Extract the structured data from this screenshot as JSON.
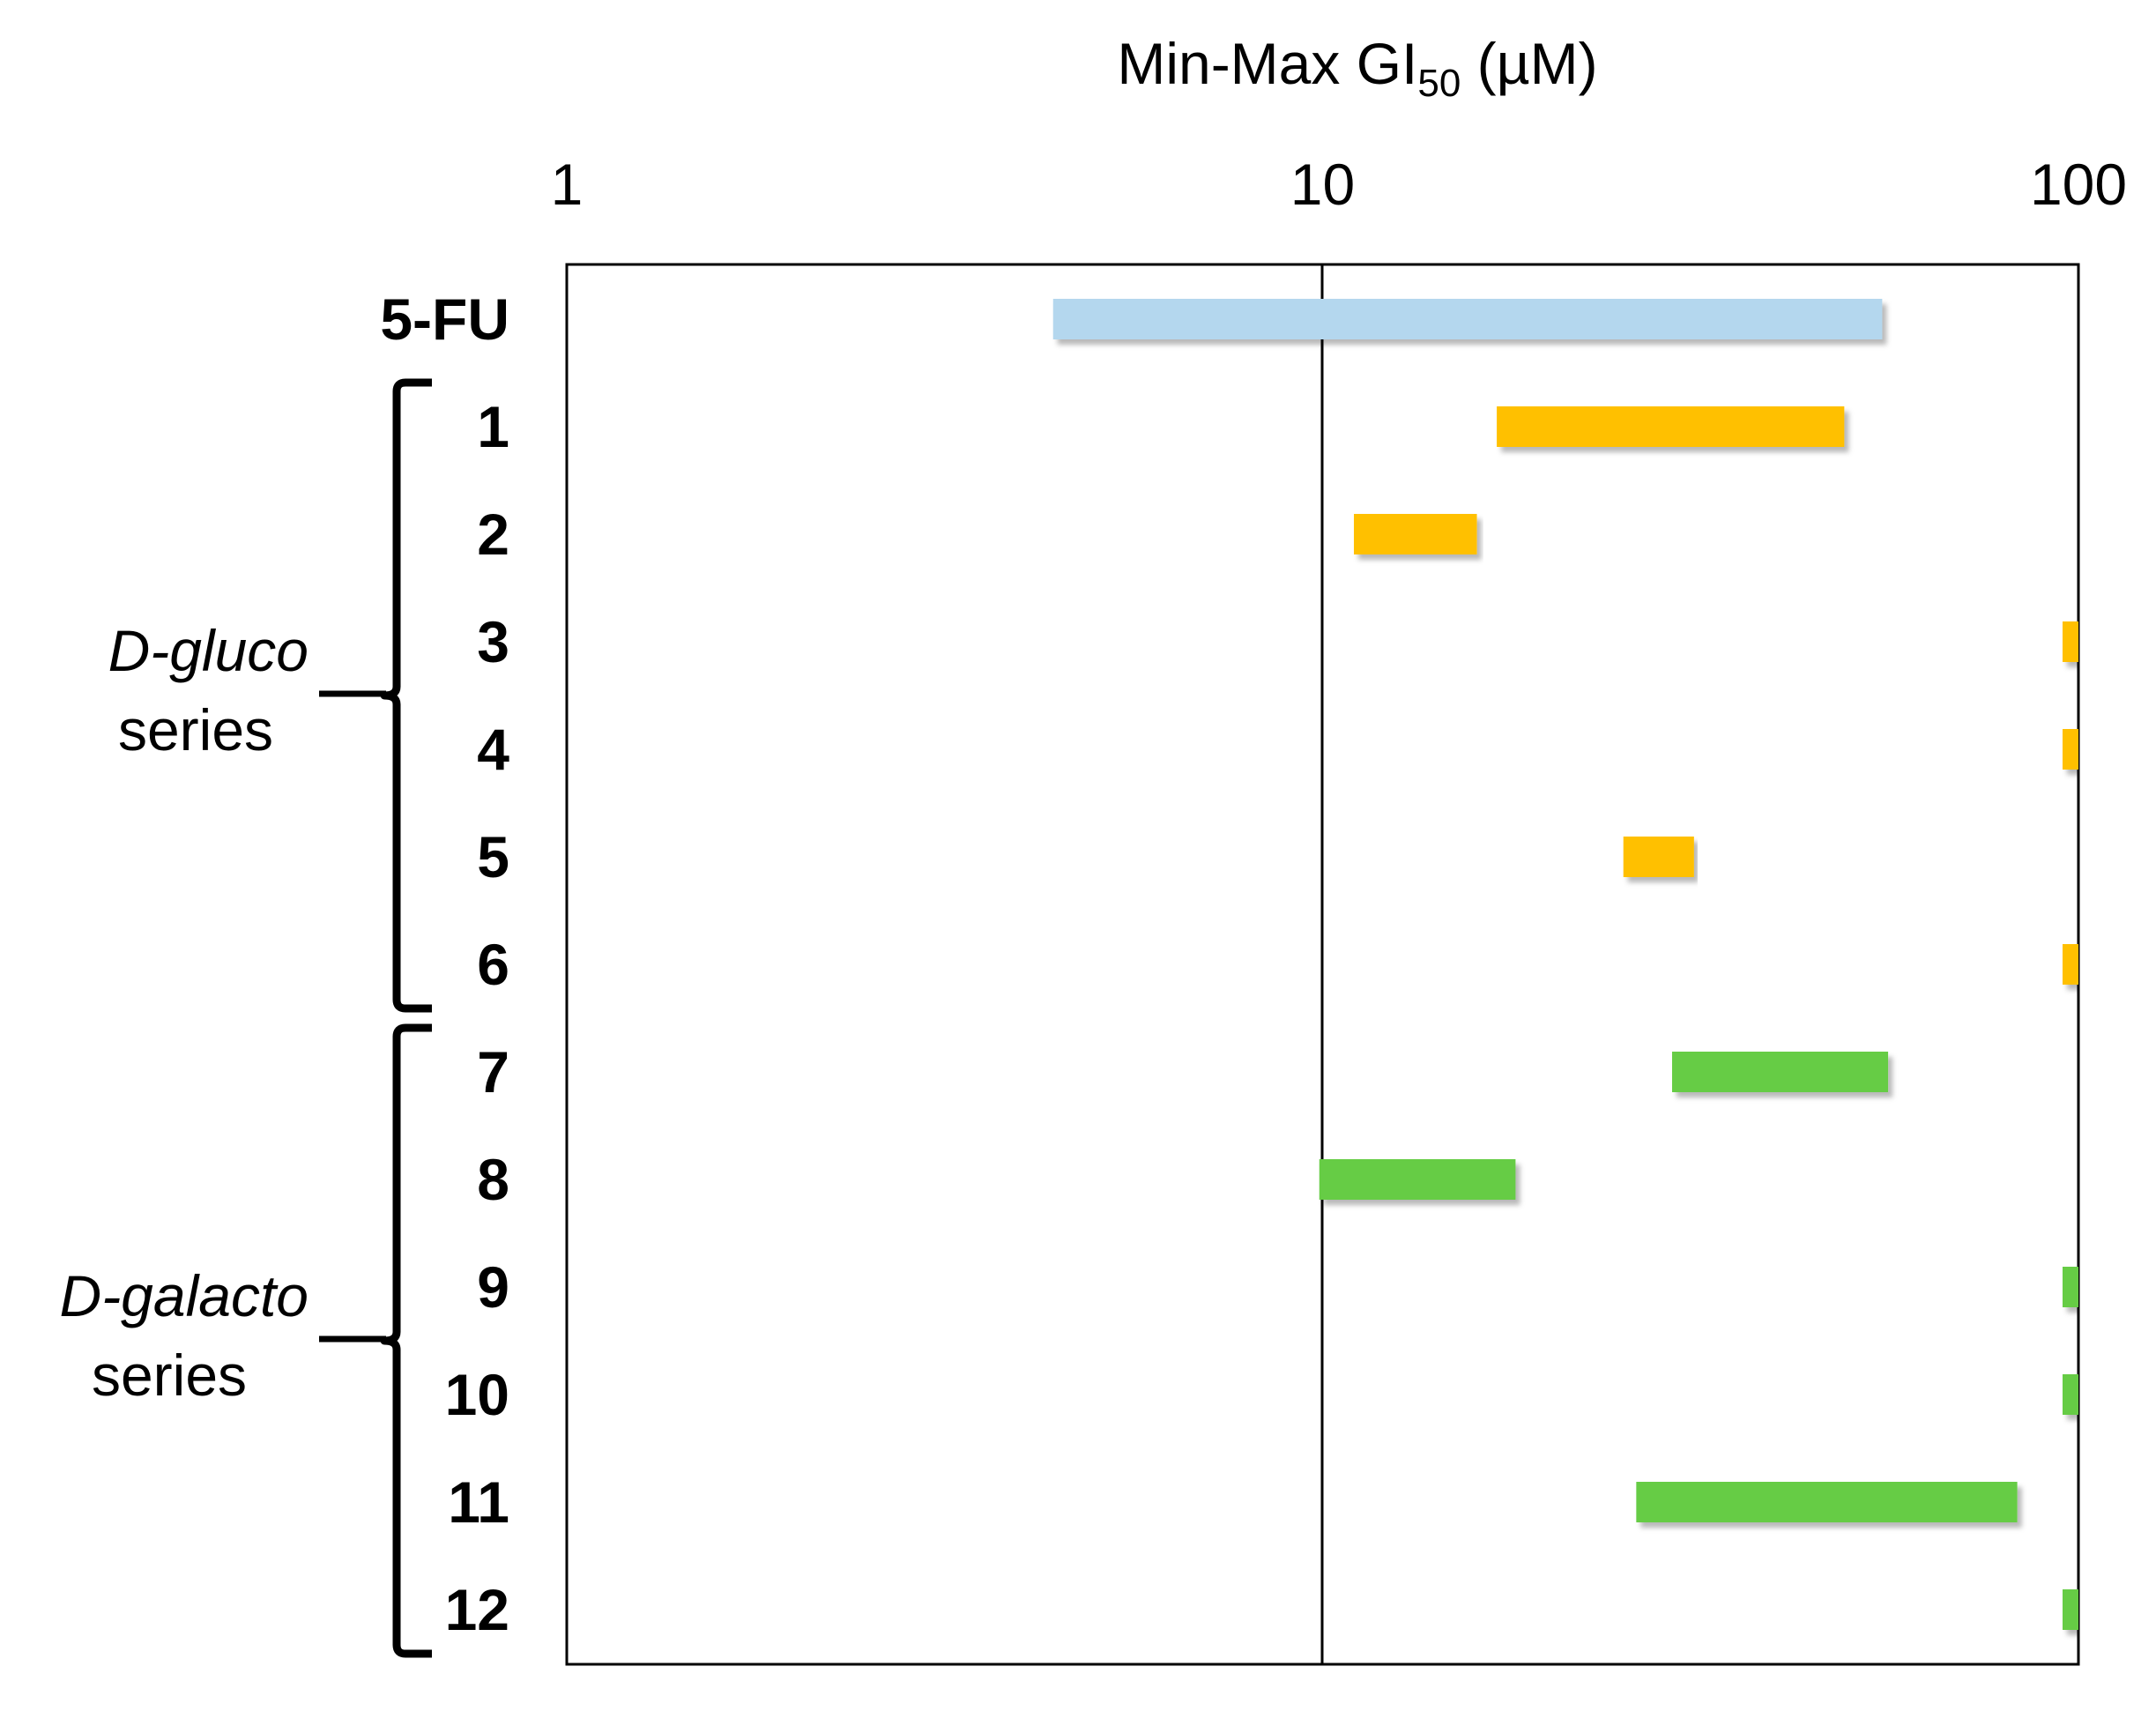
{
  "chart_data": {
    "type": "bar",
    "subtype": "floating-range",
    "title": "",
    "xlabel": {
      "main": "Min-Max GI",
      "subscript": "50",
      "unit": " (µM)"
    },
    "ylabel": "",
    "x_scale": "log",
    "xlim": [
      1,
      100
    ],
    "x_ticks": [
      "1",
      "10",
      "100"
    ],
    "grid": "vertical line at 10",
    "legend": "none",
    "colors": {
      "reference": "#B4D7EE",
      "gluco": "#FFC000",
      "galacto": "#66CC44"
    },
    "categories": [
      "5-FU",
      "1",
      "2",
      "3",
      "4",
      "5",
      "6",
      "7",
      "8",
      "9",
      "10",
      "11",
      "12"
    ],
    "ranges": [
      {
        "label": "5-FU",
        "min": 4.4,
        "max": 55,
        "color": "#B4D7EE"
      },
      {
        "label": "1",
        "min": 17,
        "max": 49,
        "color": "#FFC000"
      },
      {
        "label": "2",
        "min": 11,
        "max": 16,
        "color": "#FFC000"
      },
      {
        "label": "3",
        "min": 100,
        "max": 100,
        "color": "#FFC000"
      },
      {
        "label": "4",
        "min": 100,
        "max": 100,
        "color": "#FFC000"
      },
      {
        "label": "5",
        "min": 25,
        "max": 31,
        "color": "#FFC000"
      },
      {
        "label": "6",
        "min": 100,
        "max": 100,
        "color": "#FFC000"
      },
      {
        "label": "7",
        "min": 29,
        "max": 56,
        "color": "#66CC44"
      },
      {
        "label": "8",
        "min": 9.9,
        "max": 18,
        "color": "#66CC44"
      },
      {
        "label": "9",
        "min": 100,
        "max": 100,
        "color": "#66CC44"
      },
      {
        "label": "10",
        "min": 100,
        "max": 100,
        "color": "#66CC44"
      },
      {
        "label": "11",
        "min": 26,
        "max": 83,
        "color": "#66CC44"
      },
      {
        "label": "12",
        "min": 100,
        "max": 100,
        "color": "#66CC44"
      }
    ],
    "groups": [
      {
        "name_italic": "D-gluco",
        "name_rest": "series",
        "from": "1",
        "to": "6"
      },
      {
        "name_italic": "D-galacto",
        "name_rest": "series",
        "from": "7",
        "to": "12"
      }
    ]
  }
}
